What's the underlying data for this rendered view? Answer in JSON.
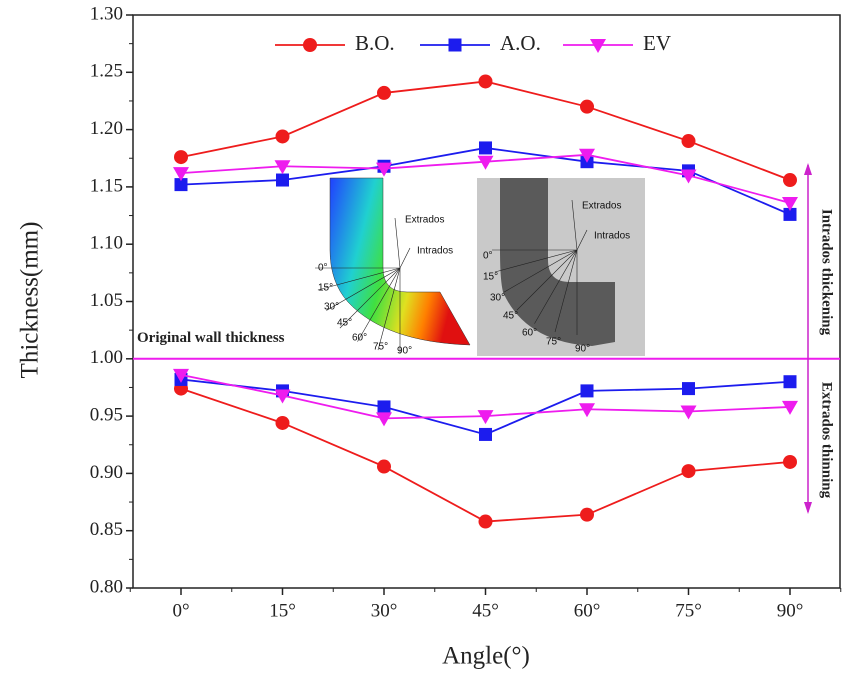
{
  "chart_data": {
    "type": "line",
    "x_label": "Angle(°)",
    "y_label": "Thickness(mm)",
    "categories": [
      "0°",
      "15°",
      "30°",
      "45°",
      "60°",
      "75°",
      "90°"
    ],
    "series": [
      {
        "name": "B.O.",
        "color": "#ee1c1c",
        "marker": "circle",
        "values": [
          1.176,
          1.194,
          1.232,
          1.242,
          1.22,
          1.19,
          1.156
        ],
        "extrados_values": [
          0.974,
          0.944,
          0.906,
          0.858,
          0.864,
          0.902,
          0.91
        ]
      },
      {
        "name": "A.O.",
        "color": "#1c1cee",
        "marker": "square",
        "values": [
          1.152,
          1.156,
          1.168,
          1.184,
          1.172,
          1.164,
          1.126
        ],
        "extrados_values": [
          0.982,
          0.972,
          0.958,
          0.934,
          0.972,
          0.974,
          0.98
        ]
      },
      {
        "name": "EV",
        "color": "#ee1cee",
        "marker": "triangle-down",
        "values": [
          1.162,
          1.168,
          1.166,
          1.172,
          1.178,
          1.16,
          1.136
        ],
        "extrados_values": [
          0.986,
          0.968,
          0.948,
          0.95,
          0.956,
          0.954,
          0.958
        ]
      }
    ],
    "ylim": [
      0.8,
      1.3
    ],
    "yticks": [
      {
        "value": 0.8,
        "label": "0.80"
      },
      {
        "value": 0.85,
        "label": "0.85"
      },
      {
        "value": 0.9,
        "label": "0.90"
      },
      {
        "value": 0.95,
        "label": "0.95"
      },
      {
        "value": 1.0,
        "label": "1.00"
      },
      {
        "value": 1.05,
        "label": "1.05"
      },
      {
        "value": 1.1,
        "label": "1.10"
      },
      {
        "value": 1.15,
        "label": "1.15"
      },
      {
        "value": 1.2,
        "label": "1.20"
      },
      {
        "value": 1.25,
        "label": "1.25"
      },
      {
        "value": 1.3,
        "label": "1.30"
      }
    ],
    "reference_line": {
      "value": 1.0,
      "label": "Original wall thickness",
      "color": "#ee1cee"
    },
    "arrow_labels": [
      "Intrados thickening",
      "Extrados thinning"
    ],
    "inset": {
      "left_labels": [
        "Extrados",
        "Intrados",
        "0°",
        "15°",
        "30°",
        "45°",
        "60°",
        "75°",
        "90°"
      ],
      "right_labels": [
        "Extrados",
        "Intrados",
        "0°",
        "15°",
        "30°",
        "45°",
        "60°",
        "75°",
        "90°"
      ]
    }
  }
}
